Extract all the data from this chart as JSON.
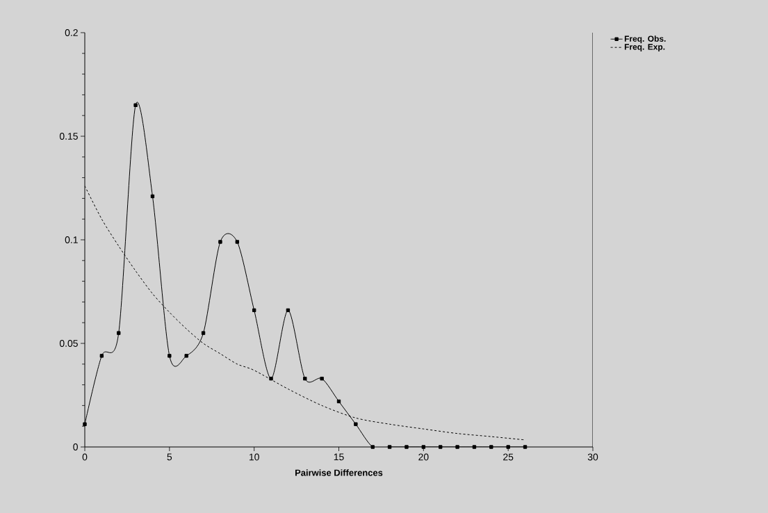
{
  "chart_data": {
    "type": "line",
    "xlabel": "Pairwise Differences",
    "xlim": [
      0,
      30
    ],
    "xticks": [
      0,
      5,
      10,
      15,
      20,
      25,
      30
    ],
    "ylim": [
      0,
      0.2
    ],
    "yticks": [
      0,
      0.05,
      0.1,
      0.15,
      0.2
    ],
    "grid": false,
    "legend": "top right",
    "series": [
      {
        "name": "Freq. Obs.",
        "color": "#000000",
        "marker": "square",
        "line_style": "solid",
        "x": [
          0,
          1,
          2,
          3,
          4,
          5,
          6,
          7,
          8,
          9,
          10,
          11,
          12,
          13,
          14,
          15,
          16,
          17,
          18,
          19,
          20,
          21,
          22,
          23,
          24,
          25,
          26
        ],
        "values": [
          0.011,
          0.044,
          0.055,
          0.165,
          0.121,
          0.044,
          0.044,
          0.055,
          0.099,
          0.099,
          0.066,
          0.033,
          0.066,
          0.033,
          0.033,
          0.022,
          0.011,
          0,
          0,
          0,
          0,
          0,
          0,
          0,
          0,
          0,
          0
        ]
      },
      {
        "name": "Freq. Exp.",
        "color": "#000000",
        "marker": "none",
        "line_style": "dashed",
        "x": [
          0,
          1,
          2,
          3,
          4,
          5,
          6,
          7,
          8,
          9,
          10,
          12,
          14,
          16,
          18,
          20,
          22,
          24,
          26
        ],
        "values": [
          0.126,
          0.11,
          0.097,
          0.085,
          0.074,
          0.065,
          0.057,
          0.05,
          0.045,
          0.04,
          0.037,
          0.028,
          0.02,
          0.014,
          0.011,
          0.0087,
          0.0065,
          0.005,
          0.0034
        ]
      }
    ]
  }
}
